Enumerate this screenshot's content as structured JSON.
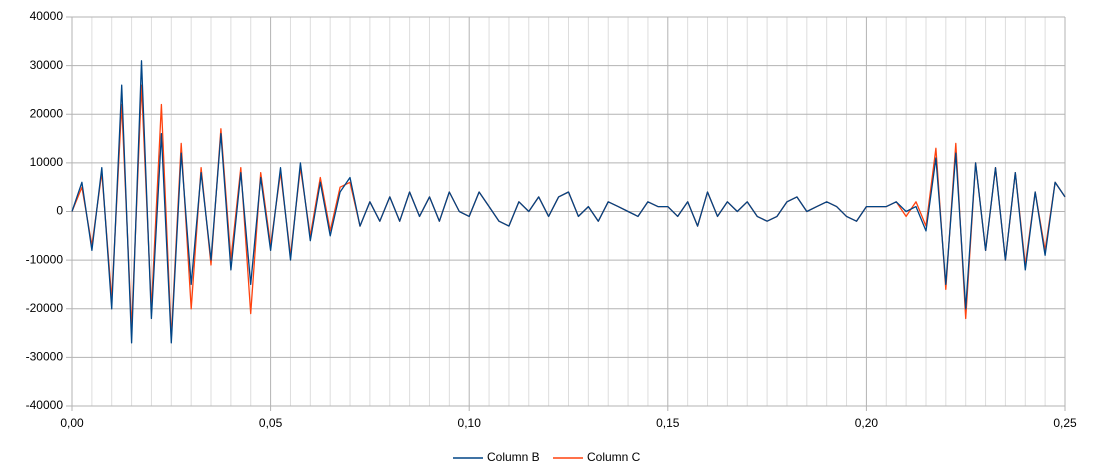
{
  "chart_data": {
    "type": "line",
    "x": [
      0,
      0.0025,
      0.005,
      0.0075,
      0.01,
      0.0125,
      0.015,
      0.0175,
      0.02,
      0.0225,
      0.025,
      0.0275,
      0.03,
      0.0325,
      0.035,
      0.0375,
      0.04,
      0.0425,
      0.045,
      0.0475,
      0.05,
      0.0525,
      0.055,
      0.0575,
      0.06,
      0.0625,
      0.065,
      0.0675,
      0.07,
      0.0725,
      0.075,
      0.0775,
      0.08,
      0.0825,
      0.085,
      0.0875,
      0.09,
      0.0925,
      0.095,
      0.0975,
      0.1,
      0.1025,
      0.105,
      0.1075,
      0.11,
      0.1125,
      0.115,
      0.1175,
      0.12,
      0.1225,
      0.125,
      0.1275,
      0.13,
      0.1325,
      0.135,
      0.1375,
      0.14,
      0.1425,
      0.145,
      0.1475,
      0.15,
      0.1525,
      0.155,
      0.1575,
      0.16,
      0.1625,
      0.165,
      0.1675,
      0.17,
      0.1725,
      0.175,
      0.1775,
      0.18,
      0.1825,
      0.185,
      0.1875,
      0.19,
      0.1925,
      0.195,
      0.1975,
      0.2,
      0.2025,
      0.205,
      0.2075,
      0.21,
      0.2125,
      0.215,
      0.2175,
      0.22,
      0.2225,
      0.225,
      0.2275,
      0.23,
      0.2325,
      0.235,
      0.2375,
      0.24,
      0.2425,
      0.245,
      0.2475,
      0.25
    ],
    "series": [
      {
        "name": "Column B",
        "color": "#004586",
        "values": [
          0,
          6000,
          -8000,
          9000,
          -20000,
          26000,
          -27000,
          31000,
          -22000,
          16000,
          -27000,
          12000,
          -15000,
          8000,
          -10000,
          16000,
          -12000,
          8000,
          -15000,
          7000,
          -8000,
          9000,
          -10000,
          10000,
          -6000,
          6000,
          -5000,
          4000,
          7000,
          -3000,
          2000,
          -2000,
          3000,
          -2000,
          4000,
          -1000,
          3000,
          -2000,
          4000,
          0,
          -1000,
          4000,
          1000,
          -2000,
          -3000,
          2000,
          0,
          3000,
          -1000,
          3000,
          4000,
          -1000,
          1000,
          -2000,
          2000,
          1000,
          0,
          -1000,
          2000,
          1000,
          1000,
          -1000,
          2000,
          -3000,
          4000,
          -1000,
          2000,
          0,
          2000,
          -1000,
          -2000,
          -1000,
          2000,
          3000,
          0,
          1000,
          2000,
          1000,
          -1000,
          -2000,
          1000,
          1000,
          1000,
          2000,
          0,
          1000,
          -4000,
          11000,
          -15000,
          12000,
          -20000,
          10000,
          -8000,
          9000,
          -10000,
          8000,
          -12000,
          4000,
          -9000,
          6000,
          3000
        ]
      },
      {
        "name": "Column C",
        "color": "#ff420e",
        "values": [
          0,
          5000,
          -7000,
          8000,
          -18000,
          22000,
          -24000,
          26000,
          -20000,
          22000,
          -26000,
          14000,
          -20000,
          9000,
          -11000,
          17000,
          -10000,
          9000,
          -21000,
          8000,
          -7000,
          8000,
          -9000,
          9000,
          -5000,
          7000,
          -4000,
          5000,
          6000,
          -3000,
          2000,
          -2000,
          3000,
          -2000,
          4000,
          -1000,
          3000,
          -2000,
          4000,
          0,
          -1000,
          4000,
          1000,
          -2000,
          -3000,
          2000,
          0,
          3000,
          -1000,
          3000,
          4000,
          -1000,
          1000,
          -2000,
          2000,
          1000,
          0,
          -1000,
          2000,
          1000,
          1000,
          -1000,
          2000,
          -3000,
          4000,
          -1000,
          2000,
          0,
          2000,
          -1000,
          -2000,
          -1000,
          2000,
          3000,
          0,
          1000,
          2000,
          1000,
          -1000,
          -2000,
          1000,
          1000,
          1000,
          2000,
          -1000,
          2000,
          -3000,
          13000,
          -16000,
          14000,
          -22000,
          10000,
          -8000,
          9000,
          -10000,
          8000,
          -11000,
          4000,
          -8000,
          6000,
          3000
        ]
      }
    ],
    "xlim": [
      0,
      0.25
    ],
    "xticks": [
      {
        "value": 0,
        "label": "0,00"
      },
      {
        "value": 0.05,
        "label": "0,05"
      },
      {
        "value": 0.1,
        "label": "0,10"
      },
      {
        "value": 0.15,
        "label": "0,15"
      },
      {
        "value": 0.2,
        "label": "0,20"
      },
      {
        "value": 0.25,
        "label": "0,25"
      }
    ],
    "xminorticks": [
      0.005,
      0.01,
      0.015,
      0.02,
      0.025,
      0.03,
      0.035,
      0.04,
      0.045,
      0.055,
      0.06,
      0.065,
      0.07,
      0.075,
      0.08,
      0.085,
      0.09,
      0.095,
      0.105,
      0.11,
      0.115,
      0.12,
      0.125,
      0.13,
      0.135,
      0.14,
      0.145,
      0.155,
      0.16,
      0.165,
      0.17,
      0.175,
      0.18,
      0.185,
      0.19,
      0.195,
      0.205,
      0.21,
      0.215,
      0.22,
      0.225,
      0.23,
      0.235,
      0.24,
      0.245
    ],
    "ylim": [
      -40000,
      40000
    ],
    "yticks": [
      -40000,
      -30000,
      -20000,
      -10000,
      0,
      10000,
      20000,
      30000,
      40000
    ],
    "grid": true,
    "legend": "bottom"
  }
}
